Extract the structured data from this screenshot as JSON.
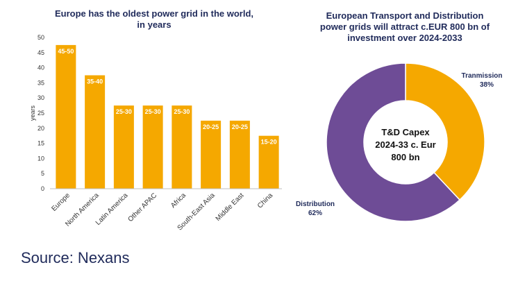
{
  "chart_data": [
    {
      "type": "bar",
      "title_lines": [
        "Europe has the oldest power grid in the world,",
        "in years"
      ],
      "ylabel": "years",
      "ylim": [
        0,
        50
      ],
      "yticks": [
        0,
        5,
        10,
        15,
        20,
        25,
        30,
        35,
        40,
        45,
        50
      ],
      "categories": [
        "Europe",
        "North America",
        "Latin America",
        "Other APAC",
        "Africa",
        "South-East Asia",
        "Middle East",
        "China"
      ],
      "values": [
        47.5,
        37.5,
        27.5,
        27.5,
        27.5,
        22.5,
        22.5,
        17.5
      ],
      "data_labels": [
        "45-50",
        "35-40",
        "25-30",
        "25-30",
        "25-30",
        "20-25",
        "20-25",
        "15-20"
      ],
      "color": "#f5a800"
    },
    {
      "type": "pie",
      "subtype": "donut",
      "title_lines": [
        "European Transport and Distribution",
        "power grids will attract c.EUR 800 bn of",
        "investment over 2024-2033"
      ],
      "center_lines": [
        "T&D Capex",
        "2024-33 c. Eur",
        "800 bn"
      ],
      "slices": [
        {
          "name": "Tranmission",
          "value_label": "38%",
          "value": 38,
          "color": "#f5a800"
        },
        {
          "name": "Distribution",
          "value_label": "62%",
          "value": 62,
          "color": "#6e4c96"
        }
      ]
    }
  ],
  "source": "Source: Nexans"
}
